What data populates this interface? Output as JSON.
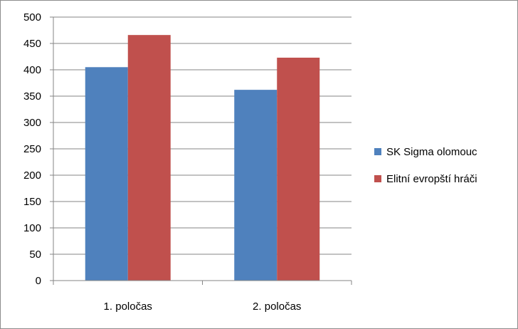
{
  "chart_data": {
    "type": "bar",
    "categories": [
      "1. poločas",
      "2. poločas"
    ],
    "series": [
      {
        "name": "SK Sigma olomouc",
        "values": [
          405,
          362
        ],
        "color": "#4f81bd"
      },
      {
        "name": "Elitní evropští hráči",
        "values": [
          466,
          423
        ],
        "color": "#c0504d"
      }
    ],
    "ylim": [
      0,
      500
    ],
    "yticks": [
      "0",
      "50",
      "100",
      "150",
      "200",
      "250",
      "300",
      "350",
      "400",
      "450",
      "500"
    ],
    "grid": true,
    "legend_position": "right"
  }
}
